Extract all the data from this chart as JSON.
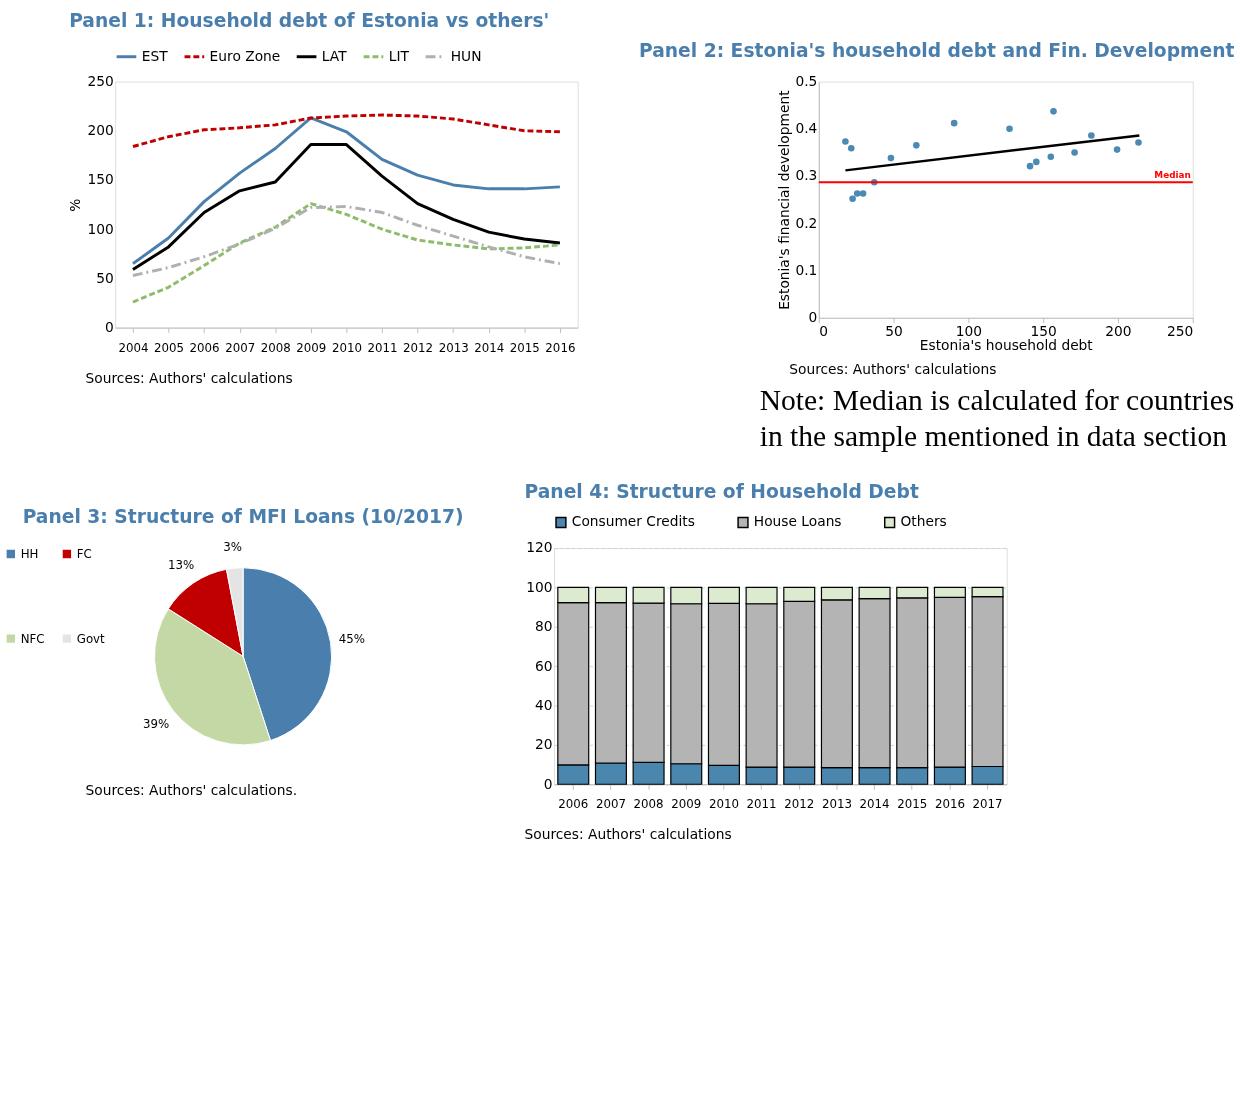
{
  "chart_data": [
    {
      "type": "line",
      "title": "Panel 1: Household debt of Estonia vs others'",
      "ylabel": "%",
      "categories": [
        "2004",
        "2005",
        "2006",
        "2007",
        "2008",
        "2009",
        "2010",
        "2011",
        "2012",
        "2013",
        "2014",
        "2015",
        "2016"
      ],
      "series": [
        {
          "name": "EST",
          "color": "#4a7fad",
          "line_style": "solid",
          "values": [
            65,
            91,
            128,
            157,
            182,
            213,
            199,
            171,
            155,
            145,
            141,
            141,
            143
          ]
        },
        {
          "name": "Euro Zone",
          "color": "#c00000",
          "line_style": "dashed",
          "values": [
            184,
            194,
            201,
            203,
            206,
            213,
            215,
            216,
            215,
            212,
            206,
            200,
            199
          ]
        },
        {
          "name": "LAT",
          "color": "#000000",
          "line_style": "solid",
          "values": [
            59,
            82,
            117,
            139,
            148,
            186,
            186,
            154,
            126,
            110,
            97,
            90,
            86
          ]
        },
        {
          "name": "LIT",
          "color": "#8fbc6a",
          "line_style": "dashed",
          "values": [
            26,
            41,
            63,
            86,
            102,
            126,
            115,
            100,
            89,
            84,
            80,
            81,
            84
          ]
        },
        {
          "name": "HUN",
          "color": "#b0b0b0",
          "line_style": "dashdot",
          "values": [
            53,
            61,
            72,
            85,
            101,
            122,
            123,
            117,
            104,
            93,
            82,
            72,
            65
          ]
        }
      ],
      "ylim": [
        0,
        250
      ],
      "yticks": [
        0,
        50,
        100,
        150,
        200,
        250
      ],
      "grid": false,
      "legend": "top",
      "marker": "none",
      "annotations": [
        "Sources: Authors' calculations"
      ]
    },
    {
      "type": "scatter",
      "title": "Panel 2: Estonia's household debt and Fin. Development",
      "xlabel": "Estonia's household debt",
      "ylabel": "Estonia's financial development",
      "series": [
        {
          "type": "scatter",
          "color": "#4a8ab4",
          "marker": "circle",
          "x": [
            17.8,
            21.7,
            22.6,
            25.7,
            29.6,
            37.1,
            48.2,
            65.2,
            90.5,
            127.5,
            141.2,
            145.4,
            155.1,
            156.9,
            171,
            182.2,
            199.4,
            213.7
          ],
          "values": [
            0.373,
            0.359,
            0.252,
            0.263,
            0.263,
            0.287,
            0.338,
            0.365,
            0.412,
            0.4,
            0.321,
            0.33,
            0.341,
            0.437,
            0.35,
            0.386,
            0.356,
            0.371
          ]
        },
        {
          "type": "line",
          "color": "#000000",
          "marker": "none",
          "x": [
            17.8,
            214.3
          ],
          "values": [
            0.312,
            0.386
          ]
        }
      ],
      "ref_lines": [
        {
          "axis": "y",
          "value": 0.287,
          "label": "Median",
          "color": "#ff0000"
        }
      ],
      "xlim": [
        0,
        250
      ],
      "xticks": [
        0,
        50,
        100,
        150,
        200,
        250
      ],
      "ylim": [
        0,
        0.5
      ],
      "yticks": [
        0,
        0.1,
        0.2,
        0.3,
        0.4,
        0.5
      ],
      "grid": false,
      "annotations": [
        "Sources: Authors' calculations",
        "Note: Median is calculated for countries in the sample mentioned in data section"
      ]
    },
    {
      "type": "pie",
      "title": "Panel 3: Structure of MFI Loans (10/2017)",
      "categories": [
        "HH",
        "NFC",
        "FC",
        "Govt"
      ],
      "values": [
        45,
        39,
        13,
        3
      ],
      "colors": [
        "#4a7fad",
        "#c3d8a5",
        "#c00000",
        "#e4e4e4"
      ],
      "value_labels": [
        "45%",
        "39%",
        "13%",
        "3%"
      ],
      "legend": "left",
      "annotations": [
        "Sources: Authors' calculations."
      ]
    },
    {
      "type": "bar",
      "stacked": true,
      "title": "Panel 4: Structure of Household Debt",
      "categories": [
        "2006",
        "2007",
        "2008",
        "2009",
        "2010",
        "2011",
        "2012",
        "2013",
        "2014",
        "2015",
        "2016",
        "2017"
      ],
      "series": [
        {
          "name": "Consumer Credits",
          "color": "#4a86ad",
          "values": [
            9.8,
            10.8,
            11.1,
            10.4,
            9.6,
            8.7,
            8.7,
            8.4,
            8.4,
            8.4,
            8.7,
            9.0
          ]
        },
        {
          "name": "House Loans",
          "color": "#b4b4b4",
          "values": [
            82.5,
            81.5,
            80.9,
            81.3,
            82.3,
            83.0,
            84.2,
            85.3,
            85.9,
            86.3,
            86.2,
            86.3
          ]
        },
        {
          "name": "Others",
          "color": "#dcebd0",
          "values": [
            7.7,
            7.7,
            8.0,
            8.3,
            8.1,
            8.3,
            7.1,
            6.3,
            5.7,
            5.3,
            5.1,
            4.7
          ]
        }
      ],
      "ylim": [
        0,
        120
      ],
      "yticks": [
        0,
        20,
        40,
        60,
        80,
        100,
        120
      ],
      "grid": "y",
      "legend": "top",
      "annotations": [
        "Sources: Authors' calculations"
      ]
    }
  ]
}
